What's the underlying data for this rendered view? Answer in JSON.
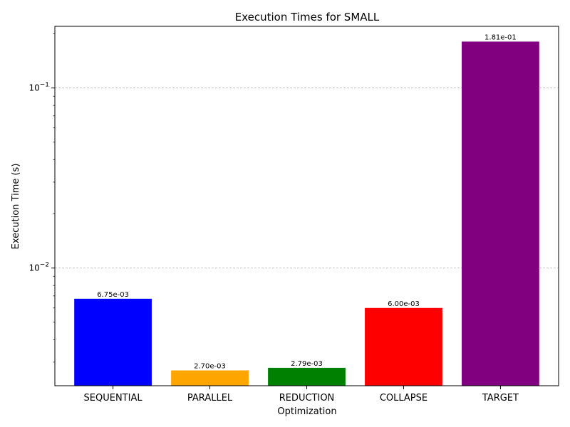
{
  "chart_data": {
    "type": "bar",
    "title": "Execution Times for SMALL",
    "xlabel": "Optimization",
    "ylabel": "Execution Time (s)",
    "yscale": "log",
    "ylim": [
      0.00222,
      0.22
    ],
    "categories": [
      "SEQUENTIAL",
      "PARALLEL",
      "REDUCTION",
      "COLLAPSE",
      "TARGET"
    ],
    "values": [
      0.00675,
      0.0027,
      0.00279,
      0.006,
      0.181
    ],
    "value_labels": [
      "6.75e-03",
      "2.70e-03",
      "2.79e-03",
      "6.00e-03",
      "1.81e-01"
    ],
    "colors": [
      "#0000ff",
      "#ffa500",
      "#008000",
      "#ff0000",
      "#800080"
    ],
    "grid": "y-major, dashed",
    "legend": "none"
  }
}
